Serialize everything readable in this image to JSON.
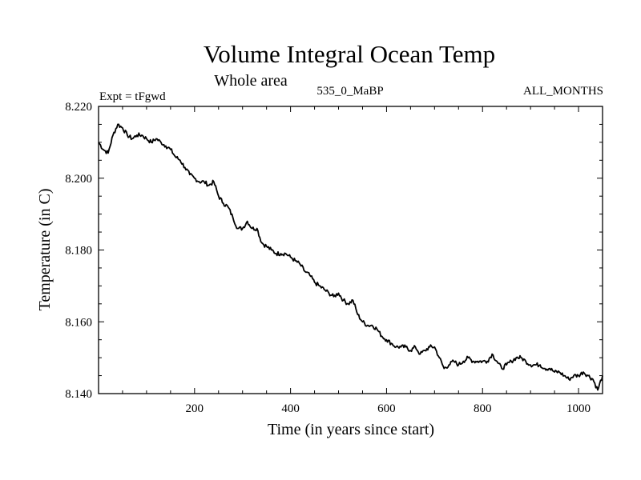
{
  "chart_data": {
    "type": "line",
    "title": "Volume Integral Ocean Temp",
    "subtitle": "Whole area",
    "annotations": {
      "left": "Expt = tFgwd",
      "center": "535_0_MaBP",
      "right": "ALL_MONTHS"
    },
    "xlabel": "Time (in years since start)",
    "ylabel": "Temperature (in C)",
    "xlim": [
      0,
      1050
    ],
    "ylim": [
      8.14,
      8.22
    ],
    "xticks": [
      200,
      400,
      600,
      800,
      1000
    ],
    "xtick_labels": [
      "200",
      "400",
      "600",
      "800",
      "1000"
    ],
    "yticks": [
      8.14,
      8.16,
      8.18,
      8.2,
      8.22
    ],
    "ytick_labels": [
      "8.140",
      "8.160",
      "8.180",
      "8.200",
      "8.220"
    ],
    "grid": false,
    "series": [
      {
        "name": "Volume Integral Ocean Temp",
        "color": "#000000",
        "x": [
          0,
          10,
          20,
          30,
          40,
          50,
          60,
          70,
          80,
          90,
          100,
          110,
          120,
          130,
          140,
          150,
          160,
          170,
          180,
          190,
          200,
          210,
          220,
          230,
          240,
          250,
          260,
          270,
          280,
          290,
          300,
          310,
          320,
          330,
          340,
          350,
          360,
          370,
          380,
          390,
          400,
          410,
          420,
          430,
          440,
          450,
          460,
          470,
          480,
          490,
          500,
          510,
          520,
          530,
          540,
          550,
          560,
          570,
          580,
          590,
          600,
          610,
          620,
          630,
          640,
          650,
          660,
          670,
          680,
          690,
          700,
          710,
          720,
          730,
          740,
          750,
          760,
          770,
          780,
          790,
          800,
          810,
          820,
          830,
          840,
          850,
          860,
          870,
          880,
          890,
          900,
          910,
          920,
          930,
          940,
          950,
          960,
          970,
          980,
          990,
          1000,
          1010,
          1020,
          1030,
          1040,
          1050
        ],
        "y": [
          8.21,
          8.208,
          8.207,
          8.212,
          8.215,
          8.214,
          8.212,
          8.211,
          8.212,
          8.212,
          8.211,
          8.21,
          8.211,
          8.21,
          8.209,
          8.208,
          8.206,
          8.205,
          8.203,
          8.201,
          8.2,
          8.199,
          8.199,
          8.198,
          8.199,
          8.195,
          8.193,
          8.192,
          8.189,
          8.186,
          8.186,
          8.188,
          8.186,
          8.186,
          8.182,
          8.181,
          8.18,
          8.179,
          8.179,
          8.179,
          8.178,
          8.177,
          8.176,
          8.174,
          8.173,
          8.171,
          8.17,
          8.169,
          8.168,
          8.167,
          8.168,
          8.166,
          8.165,
          8.166,
          8.162,
          8.16,
          8.159,
          8.159,
          8.158,
          8.156,
          8.155,
          8.154,
          8.153,
          8.153,
          8.153,
          8.152,
          8.153,
          8.151,
          8.152,
          8.153,
          8.153,
          8.15,
          8.147,
          8.148,
          8.149,
          8.148,
          8.149,
          8.15,
          8.149,
          8.149,
          8.149,
          8.149,
          8.151,
          8.149,
          8.147,
          8.148,
          8.149,
          8.15,
          8.15,
          8.149,
          8.148,
          8.148,
          8.148,
          8.147,
          8.147,
          8.146,
          8.146,
          8.145,
          8.144,
          8.145,
          8.145,
          8.146,
          8.145,
          8.144,
          8.141,
          8.145
        ]
      }
    ]
  }
}
